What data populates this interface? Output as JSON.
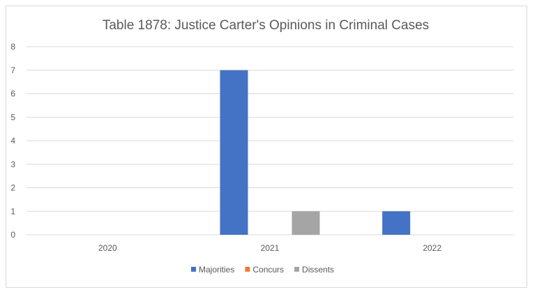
{
  "chart_data": {
    "type": "bar",
    "title": "Table 1878: Justice Carter's Opinions in Criminal Cases",
    "categories": [
      "2020",
      "2021",
      "2022"
    ],
    "series": [
      {
        "name": "Majorities",
        "values": [
          0,
          7,
          1
        ],
        "color": "#4472c4"
      },
      {
        "name": "Concurs",
        "values": [
          0,
          0,
          0
        ],
        "color": "#ed7d31"
      },
      {
        "name": "Dissents",
        "values": [
          0,
          1,
          0
        ],
        "color": "#a5a5a5"
      }
    ],
    "ylim": [
      0,
      8
    ],
    "yticks": [
      "0",
      "1",
      "2",
      "3",
      "4",
      "5",
      "6",
      "7",
      "8"
    ],
    "grid": true,
    "legend": "bottom"
  }
}
